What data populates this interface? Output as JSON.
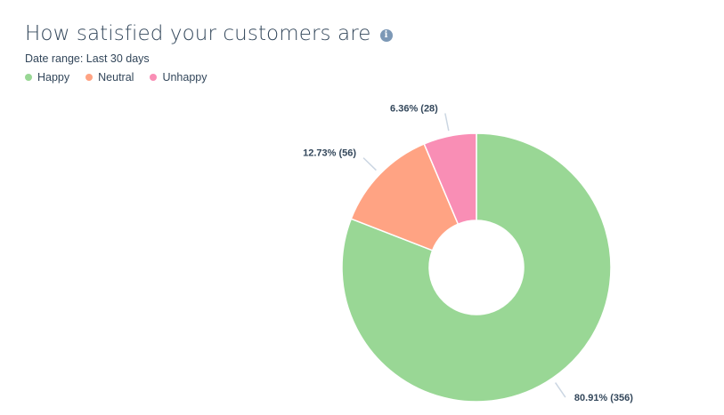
{
  "header": {
    "title": "How satisfied your customers are",
    "info_icon": "info-icon",
    "date_range": "Date range: Last 30 days"
  },
  "legend": [
    {
      "label": "Happy",
      "color": "#99d795"
    },
    {
      "label": "Neutral",
      "color": "#ffa383"
    },
    {
      "label": "Unhappy",
      "color": "#f98eb5"
    }
  ],
  "chart_data": {
    "type": "pie",
    "donut": true,
    "categories": [
      "Happy",
      "Neutral",
      "Unhappy"
    ],
    "values": [
      356,
      56,
      28
    ],
    "percentages": [
      80.91,
      12.73,
      6.36
    ],
    "labels": [
      "80.91% (356)",
      "12.73% (56)",
      "6.36% (28)"
    ],
    "colors": [
      "#99d795",
      "#ffa383",
      "#f98eb5"
    ],
    "title": "How satisfied your customers are",
    "legend_position": "top-left"
  }
}
